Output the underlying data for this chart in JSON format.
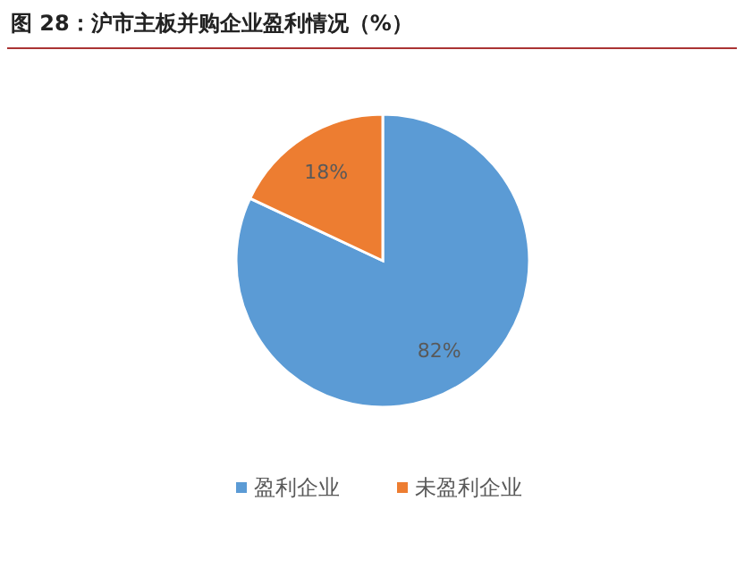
{
  "chart_data": {
    "type": "pie",
    "title": "图 28：沪市主板并购企业盈利情况（%）",
    "categories": [
      "盈利企业",
      "未盈利企业"
    ],
    "values": [
      82,
      18
    ],
    "colors": [
      "#5b9bd5",
      "#ed7d31"
    ],
    "value_labels": [
      "82%",
      "18%"
    ],
    "legend": "bottom"
  }
}
